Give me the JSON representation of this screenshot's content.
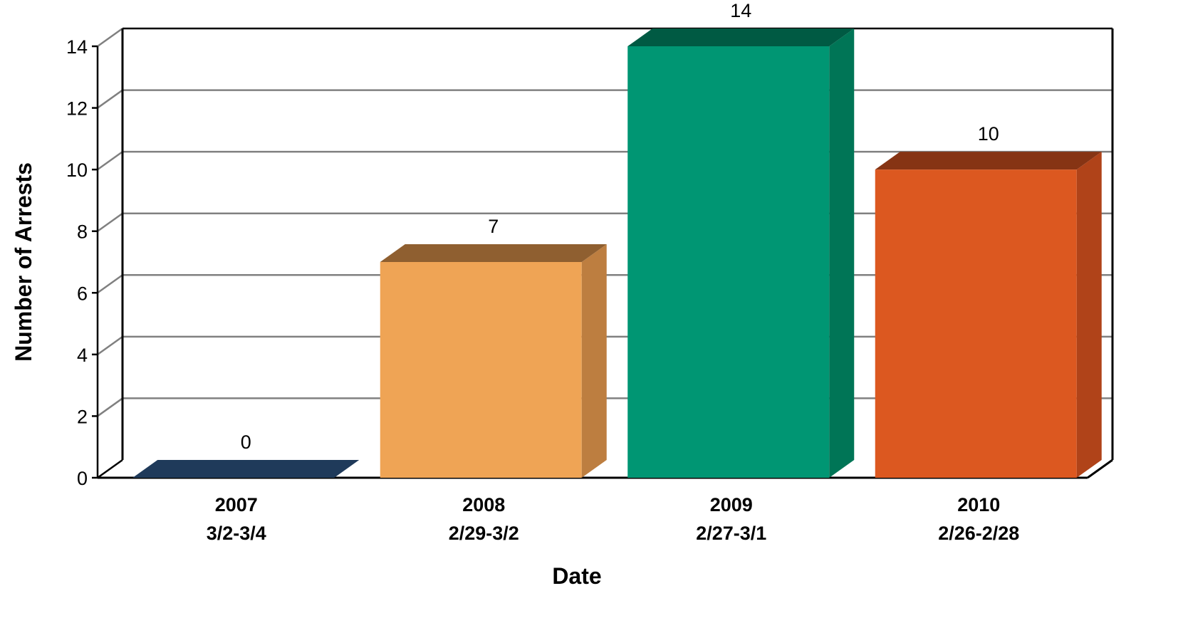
{
  "chart_data": {
    "type": "bar",
    "style": "3d-column",
    "title": "",
    "xlabel": "Date",
    "ylabel": "Number of Arrests",
    "ylim": [
      0,
      14
    ],
    "yticks": [
      "0",
      "2",
      "4",
      "6",
      "8",
      "10",
      "12",
      "14"
    ],
    "grid": true,
    "legend": "none",
    "categories": [
      {
        "year": "2007",
        "dates": "3/2-3/4"
      },
      {
        "year": "2008",
        "dates": "2/29-3/2"
      },
      {
        "year": "2009",
        "dates": "2/27-3/1"
      },
      {
        "year": "2010",
        "dates": "2/26-2/28"
      }
    ],
    "values": [
      0,
      7,
      14,
      10
    ],
    "data_labels": [
      "0",
      "7",
      "14",
      "10"
    ],
    "bar_colors": [
      {
        "front": "#1f3a5a",
        "side": "#172c44",
        "top": "#1f3a5a"
      },
      {
        "front": "#efa455",
        "side": "#bd7e40",
        "top": "#8f5f30"
      },
      {
        "front": "#009673",
        "side": "#007556",
        "top": "#005a43"
      },
      {
        "front": "#dc5820",
        "side": "#b04319",
        "top": "#863414"
      }
    ]
  }
}
